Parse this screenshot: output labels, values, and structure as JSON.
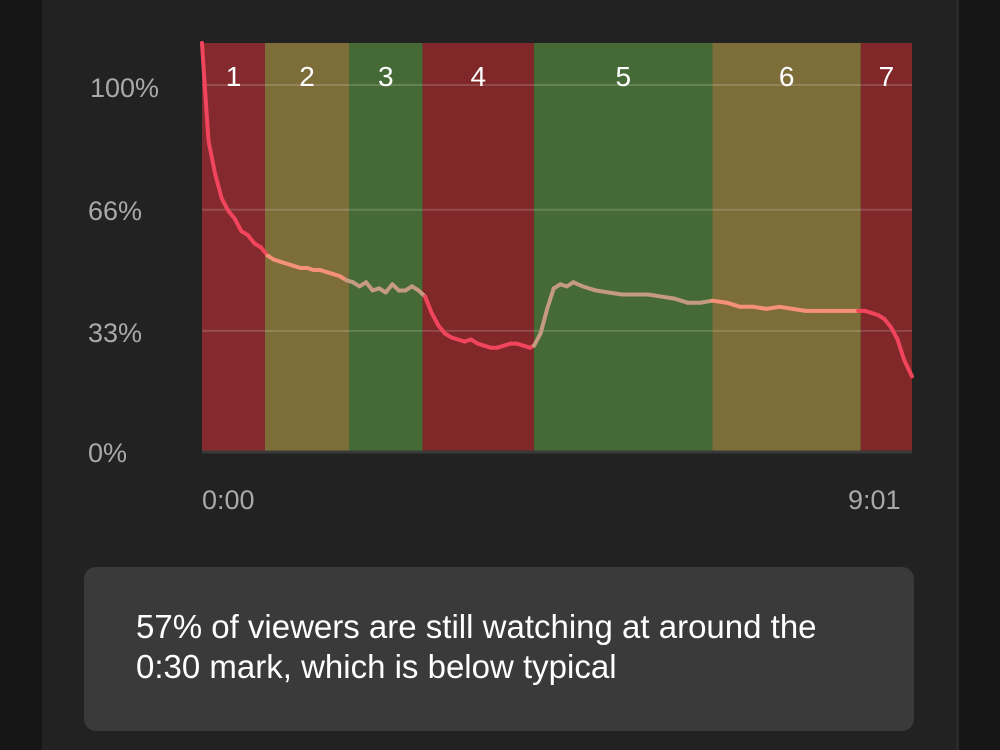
{
  "chart_data": {
    "type": "area",
    "ylim": [
      0,
      100
    ],
    "yticks": [
      "100%",
      "66%",
      "33%",
      "0%"
    ],
    "ytick_values": [
      100,
      66,
      33,
      0
    ],
    "xtick_labels": [
      "0:00",
      "9:01"
    ],
    "x_range_seconds": [
      0,
      541
    ],
    "segments": [
      {
        "label": "1",
        "start": 0,
        "end": 48,
        "color": "#842a2f"
      },
      {
        "label": "2",
        "start": 48,
        "end": 112,
        "color": "#7c6d39"
      },
      {
        "label": "3",
        "start": 112,
        "end": 168,
        "color": "#466a35"
      },
      {
        "label": "4",
        "start": 168,
        "end": 253,
        "color": "#7f2729"
      },
      {
        "label": "5",
        "start": 253,
        "end": 389,
        "color": "#466a35"
      },
      {
        "label": "6",
        "start": 389,
        "end": 502,
        "color": "#7c6d39"
      },
      {
        "label": "7",
        "start": 502,
        "end": 541,
        "color": "#7f2729"
      }
    ],
    "series": [
      {
        "x": [
          0,
          2,
          5,
          10,
          15,
          20,
          25,
          30,
          35,
          40,
          45,
          50,
          55,
          60,
          65,
          70,
          75,
          80,
          85,
          90,
          95,
          100,
          105,
          110,
          115,
          120,
          125,
          130,
          135,
          140,
          145,
          150,
          155,
          160,
          165,
          170,
          175,
          180,
          185,
          190,
          195,
          200,
          205,
          210,
          215,
          220,
          225,
          230,
          235,
          240,
          245,
          250,
          253,
          258,
          263,
          268,
          273,
          278,
          283,
          290,
          300,
          310,
          320,
          330,
          340,
          350,
          360,
          370,
          380,
          389,
          400,
          410,
          420,
          430,
          440,
          450,
          460,
          470,
          480,
          490,
          500,
          505,
          510,
          515,
          520,
          525,
          530,
          535,
          541
        ],
        "values": [
          100,
          90,
          76,
          68,
          62,
          59,
          57,
          54,
          53,
          51,
          50,
          48,
          47,
          46.5,
          46,
          45.5,
          45,
          45,
          44.5,
          44.5,
          44,
          43.5,
          43,
          42,
          41.5,
          40.5,
          41.5,
          39.5,
          40,
          39,
          41,
          39.5,
          39.5,
          40.5,
          39.5,
          38,
          34,
          31,
          29,
          28,
          27.5,
          27,
          27.5,
          26.5,
          26,
          25.5,
          25.5,
          26,
          26.5,
          26.5,
          26,
          25.5,
          26,
          29,
          35,
          40,
          41,
          40.5,
          41.5,
          40.5,
          39.5,
          39,
          38.5,
          38.5,
          38.5,
          38,
          37.5,
          36.5,
          36.5,
          37,
          36.5,
          35.5,
          35.5,
          35,
          35.5,
          35,
          34.5,
          34.5,
          34.5,
          34.5,
          34.5,
          34.5,
          34,
          33.5,
          32.5,
          30.5,
          27.5,
          22.5,
          18.5
        ]
      }
    ],
    "grid": true
  },
  "info": {
    "text": "57% of viewers are still watching at around the 0:30 mark, which is below typical"
  }
}
